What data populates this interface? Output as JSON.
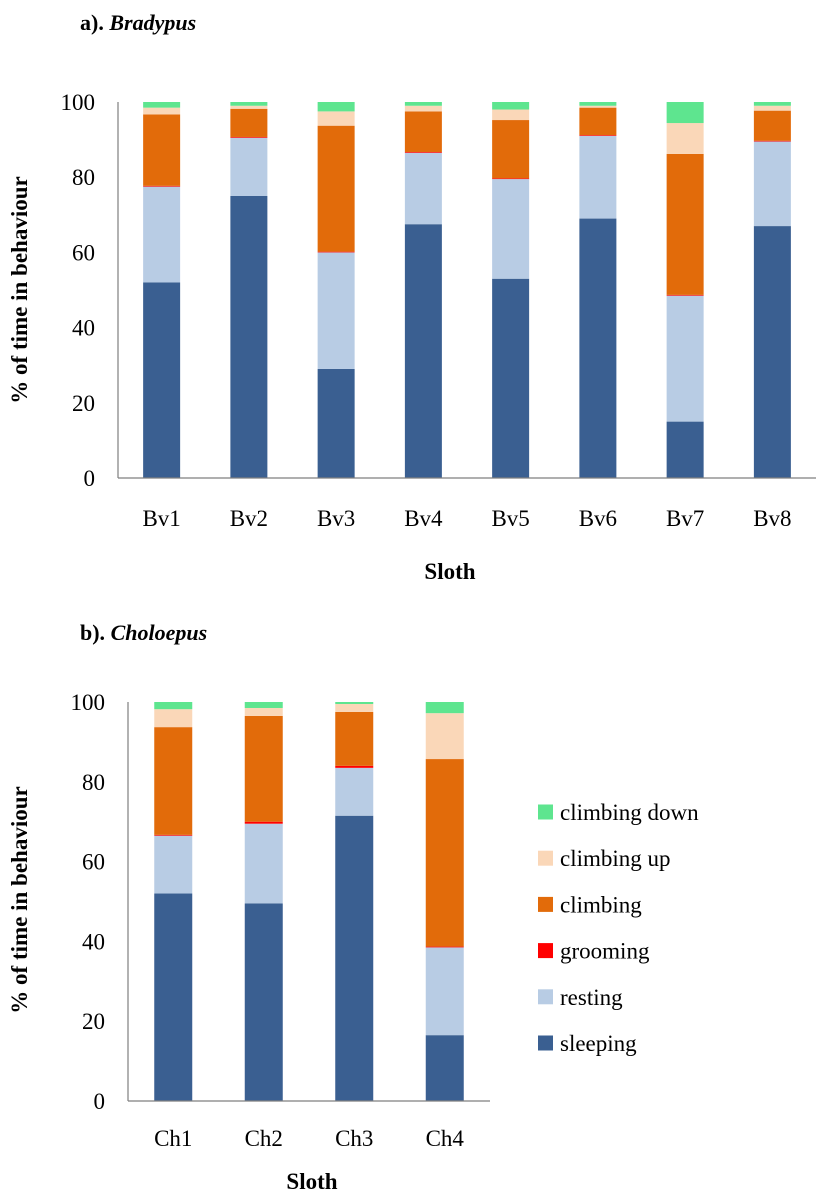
{
  "figure": {
    "series_names": [
      "sleeping",
      "resting",
      "grooming",
      "climbing",
      "climbing up",
      "climbing down"
    ],
    "colors": {
      "sleeping": "#3a5f91",
      "resting": "#b8cce4",
      "grooming": "#ff0000",
      "climbing": "#e26b0a",
      "climbing up": "#fad7b8",
      "climbing down": "#5ee58f"
    },
    "legend_order": [
      "climbing down",
      "climbing up",
      "climbing",
      "grooming",
      "resting",
      "sleeping"
    ]
  },
  "chart_data": [
    {
      "type": "bar",
      "stacked": true,
      "title_prefix": "a).",
      "title_genus": "Bradypus",
      "xlabel": "Sloth",
      "ylabel": "% of time in behaviour",
      "ylim": [
        0,
        100
      ],
      "yticks": [
        "0",
        "20",
        "40",
        "60",
        "80",
        "100"
      ],
      "categories": [
        "Bv1",
        "Bv2",
        "Bv3",
        "Bv4",
        "Bv5",
        "Bv6",
        "Bv7",
        "Bv8"
      ],
      "series": [
        {
          "name": "sleeping",
          "values": [
            52,
            75,
            29,
            67.5,
            53,
            69,
            15,
            67
          ]
        },
        {
          "name": "resting",
          "values": [
            25.5,
            15.5,
            31,
            19,
            26.5,
            22,
            33.5,
            22.5
          ]
        },
        {
          "name": "grooming",
          "values": [
            0.2,
            0.2,
            0.2,
            0.2,
            0.2,
            0.2,
            0.2,
            0.2
          ]
        },
        {
          "name": "climbing",
          "values": [
            19,
            7.5,
            33.5,
            10.8,
            15.5,
            7.3,
            37.5,
            8
          ]
        },
        {
          "name": "climbing up",
          "values": [
            1.8,
            0.8,
            3.8,
            1.5,
            2.8,
            0.5,
            8.2,
            1.3
          ]
        },
        {
          "name": "climbing down",
          "values": [
            1.5,
            1,
            2.5,
            1,
            2,
            1,
            5.6,
            1
          ]
        }
      ]
    },
    {
      "type": "bar",
      "stacked": true,
      "title_prefix": "b).",
      "title_genus": "Choloepus",
      "xlabel": "Sloth",
      "ylabel": "% of time in behaviour",
      "ylim": [
        0,
        100
      ],
      "yticks": [
        "0",
        "20",
        "40",
        "60",
        "80",
        "100"
      ],
      "categories": [
        "Ch1",
        "Ch2",
        "Ch3",
        "Ch4"
      ],
      "series": [
        {
          "name": "sleeping",
          "values": [
            52,
            49.5,
            71.5,
            16.5
          ]
        },
        {
          "name": "resting",
          "values": [
            14.5,
            20,
            12,
            22
          ]
        },
        {
          "name": "grooming",
          "values": [
            0.2,
            0.5,
            0.5,
            0.2
          ]
        },
        {
          "name": "climbing",
          "values": [
            27,
            26.5,
            13.5,
            47
          ]
        },
        {
          "name": "climbing up",
          "values": [
            4.5,
            2,
            2,
            11.5
          ]
        },
        {
          "name": "climbing down",
          "values": [
            1.8,
            1.5,
            0.5,
            2.8
          ]
        }
      ]
    }
  ]
}
